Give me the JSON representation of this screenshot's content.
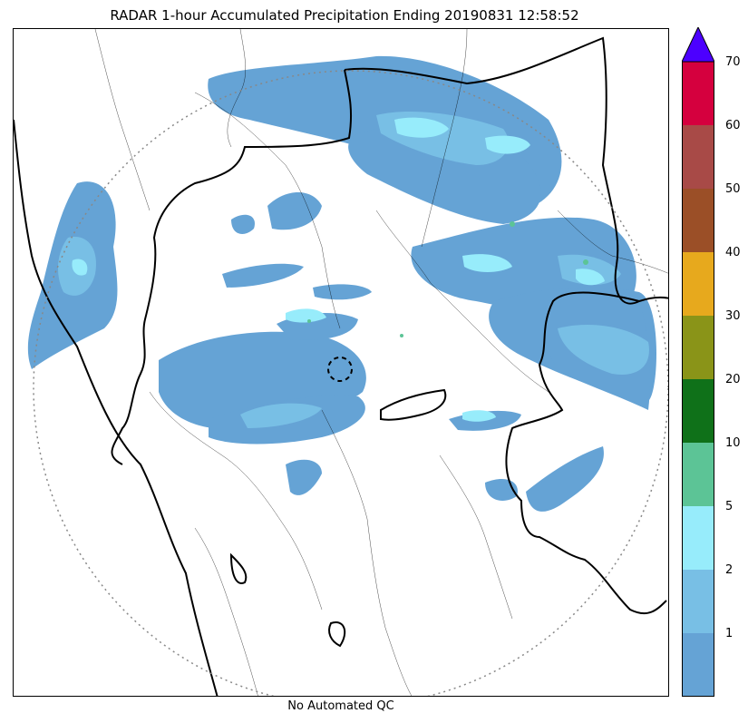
{
  "title": "RADAR 1-hour Accumulated Precipitation Ending 20190831 12:58:52",
  "caption": "No Automated QC",
  "colorbar": {
    "labels": [
      "1",
      "2",
      "5",
      "10",
      "20",
      "30",
      "40",
      "50",
      "60",
      "70"
    ],
    "colors": [
      "#65a3d5",
      "#78bfe5",
      "#97ecfb",
      "#5cc496",
      "#0f7119",
      "#8a9418",
      "#e7a91d",
      "#9b4f27",
      "#a84a47",
      "#d5003e"
    ],
    "extend_color": "#4c00ff"
  },
  "colors": {
    "precip_light": "#65a3d5",
    "precip_moderate": "#78bfe5",
    "precip_heavy": "#97ecfb",
    "boundary": "#000000",
    "range_ring": "#888888"
  }
}
